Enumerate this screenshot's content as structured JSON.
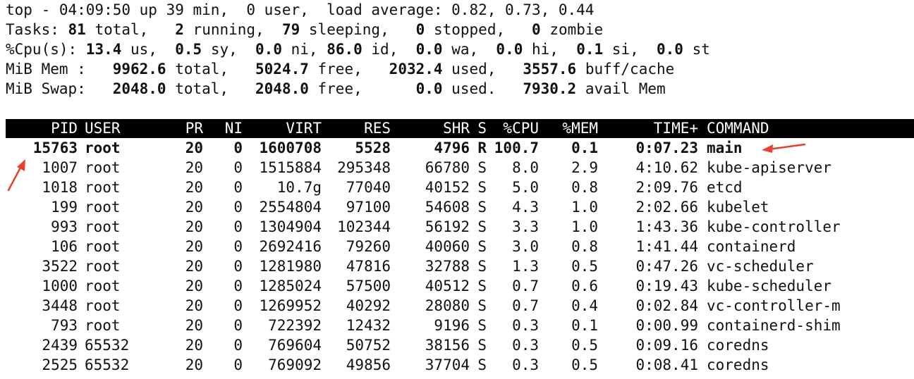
{
  "summary": {
    "line1": "top - 04:09:50 up 39 min,  0 user,  load average: 0.82, 0.73, 0.44",
    "tasks": {
      "prefix": "Tasks: ",
      "total": "81",
      "total_label": " total,   ",
      "running": "2",
      "running_label": " running,  ",
      "sleeping": "79",
      "sleeping_label": " sleeping,   ",
      "stopped": "0",
      "stopped_label": " stopped,   ",
      "zombie": "0",
      "zombie_label": " zombie"
    },
    "cpu": {
      "prefix": "%Cpu(s): ",
      "us": "13.4",
      "us_label": " us,  ",
      "sy": "0.5",
      "sy_label": " sy,  ",
      "ni": "0.0",
      "ni_label": " ni, ",
      "id": "86.0",
      "id_label": " id,  ",
      "wa": "0.0",
      "wa_label": " wa,  ",
      "hi": "0.0",
      "hi_label": " hi,  ",
      "si": "0.1",
      "si_label": " si,  ",
      "st": "0.0",
      "st_label": " st"
    },
    "mem": {
      "prefix": "MiB Mem :   ",
      "total": "9962.6",
      "total_label": " total,   ",
      "free": "5024.7",
      "free_label": " free,   ",
      "used": "2032.4",
      "used_label": " used,   ",
      "buff": "3557.6",
      "buff_label": " buff/cache"
    },
    "swap": {
      "prefix": "MiB Swap:   ",
      "total": "2048.0",
      "total_label": " total,   ",
      "free": "2048.0",
      "free_label": " free,      ",
      "used": "0.0",
      "used_label": " used.   ",
      "avail": "7930.2",
      "avail_label": " avail Mem"
    }
  },
  "columns": {
    "pid": "PID",
    "user": "USER",
    "pr": "PR",
    "ni": "NI",
    "virt": "VIRT",
    "res": "RES",
    "shr": "SHR",
    "s": "S",
    "cpu": "%CPU",
    "mem": "%MEM",
    "time": "TIME+",
    "command": "COMMAND"
  },
  "processes": [
    {
      "pid": "15763",
      "user": "root",
      "pr": "20",
      "ni": "0",
      "virt": "1600708",
      "res": "5528",
      "shr": "4796",
      "s": "R",
      "cpu": "100.7",
      "mem": "0.1",
      "time": "0:07.23",
      "command": "main"
    },
    {
      "pid": "1007",
      "user": "root",
      "pr": "20",
      "ni": "0",
      "virt": "1515884",
      "res": "295348",
      "shr": "66780",
      "s": "S",
      "cpu": "8.0",
      "mem": "2.9",
      "time": "4:10.62",
      "command": "kube-apiserver"
    },
    {
      "pid": "1018",
      "user": "root",
      "pr": "20",
      "ni": "0",
      "virt": "10.7g",
      "res": "77040",
      "shr": "40152",
      "s": "S",
      "cpu": "5.0",
      "mem": "0.8",
      "time": "2:09.76",
      "command": "etcd"
    },
    {
      "pid": "199",
      "user": "root",
      "pr": "20",
      "ni": "0",
      "virt": "2554804",
      "res": "97100",
      "shr": "54608",
      "s": "S",
      "cpu": "4.3",
      "mem": "1.0",
      "time": "2:02.66",
      "command": "kubelet"
    },
    {
      "pid": "993",
      "user": "root",
      "pr": "20",
      "ni": "0",
      "virt": "1304904",
      "res": "102344",
      "shr": "56192",
      "s": "S",
      "cpu": "3.3",
      "mem": "1.0",
      "time": "1:43.36",
      "command": "kube-controller"
    },
    {
      "pid": "106",
      "user": "root",
      "pr": "20",
      "ni": "0",
      "virt": "2692416",
      "res": "79260",
      "shr": "40060",
      "s": "S",
      "cpu": "3.0",
      "mem": "0.8",
      "time": "1:41.44",
      "command": "containerd"
    },
    {
      "pid": "3522",
      "user": "root",
      "pr": "20",
      "ni": "0",
      "virt": "1281980",
      "res": "47816",
      "shr": "32788",
      "s": "S",
      "cpu": "1.3",
      "mem": "0.5",
      "time": "0:47.26",
      "command": "vc-scheduler"
    },
    {
      "pid": "1000",
      "user": "root",
      "pr": "20",
      "ni": "0",
      "virt": "1285024",
      "res": "57500",
      "shr": "40512",
      "s": "S",
      "cpu": "0.7",
      "mem": "0.6",
      "time": "0:19.43",
      "command": "kube-scheduler"
    },
    {
      "pid": "3448",
      "user": "root",
      "pr": "20",
      "ni": "0",
      "virt": "1269952",
      "res": "40292",
      "shr": "28080",
      "s": "S",
      "cpu": "0.7",
      "mem": "0.4",
      "time": "0:02.84",
      "command": "vc-controller-m"
    },
    {
      "pid": "793",
      "user": "root",
      "pr": "20",
      "ni": "0",
      "virt": "722392",
      "res": "12432",
      "shr": "9196",
      "s": "S",
      "cpu": "0.3",
      "mem": "0.1",
      "time": "0:00.99",
      "command": "containerd-shim"
    },
    {
      "pid": "2439",
      "user": "65532",
      "pr": "20",
      "ni": "0",
      "virt": "769604",
      "res": "50752",
      "shr": "38156",
      "s": "S",
      "cpu": "0.3",
      "mem": "0.5",
      "time": "0:09.16",
      "command": "coredns"
    },
    {
      "pid": "2525",
      "user": "65532",
      "pr": "20",
      "ni": "0",
      "virt": "769092",
      "res": "49856",
      "shr": "37704",
      "s": "S",
      "cpu": "0.3",
      "mem": "0.5",
      "time": "0:08.41",
      "command": "coredns"
    }
  ],
  "annotations": {
    "arrow_color": "#e8412f",
    "arrows": [
      "arrow-to-main-command",
      "arrow-to-pid-15763"
    ]
  }
}
